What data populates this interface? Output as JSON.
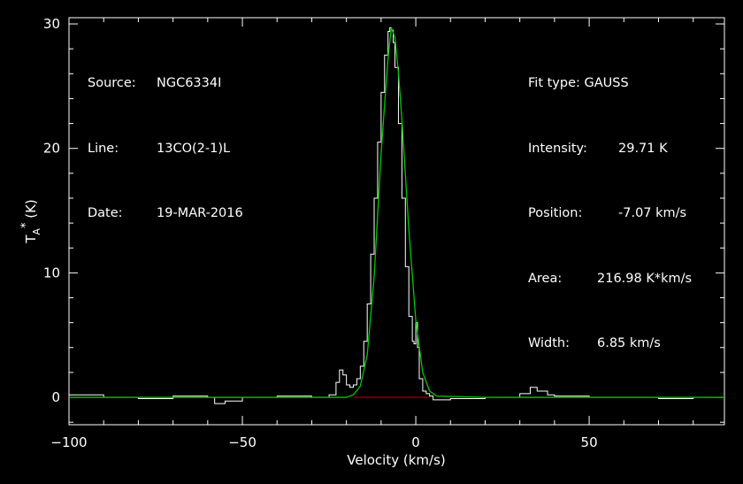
{
  "source_info": {
    "source_label": "Source:",
    "source_value": "NGC6334I",
    "line_label": "Line:",
    "line_value": "13CO(2-1)L",
    "date_label": "Date:",
    "date_value": "19-MAR-2016"
  },
  "fit_info": {
    "fit_type": "Fit type: GAUSS",
    "intensity_label": "Intensity:",
    "intensity_value": "29.71 K",
    "position_label": "Position:",
    "position_value": "-7.07 km/s",
    "area_label": "Area:",
    "area_value": "216.98 K*km/s",
    "width_label": "Width:",
    "width_value": "6.85 km/s"
  },
  "colors": {
    "background": "#000000",
    "axes": "#ffffff",
    "spectrum": "#ffffff",
    "fit": "#00c800",
    "baseline": "#c00000"
  },
  "chart_data": {
    "type": "line",
    "xlabel": "Velocity (km/s)",
    "ylabel": "T_A* (K)",
    "xlim": [
      -100,
      89
    ],
    "ylim": [
      -2.2,
      30.5
    ],
    "xticks": [
      -100,
      -50,
      0,
      50
    ],
    "yticks": [
      0,
      10,
      20,
      30
    ],
    "grid": false,
    "series": [
      {
        "name": "spectrum",
        "x": [
          -100,
          -90,
          -80,
          -70,
          -60,
          -58,
          -55,
          -50,
          -40,
          -30,
          -25,
          -23,
          -22,
          -21,
          -20,
          -19,
          -18,
          -17,
          -16,
          -15,
          -14,
          -13,
          -12,
          -11,
          -10,
          -9,
          -8,
          -7.5,
          -7,
          -6.5,
          -6,
          -5,
          -4,
          -3,
          -2,
          -1,
          -0.5,
          0,
          0.5,
          1,
          2,
          3,
          4,
          5,
          10,
          20,
          30,
          33,
          35,
          38,
          40,
          50,
          60,
          70,
          80,
          89
        ],
        "y": [
          0.2,
          0.0,
          -0.1,
          0.1,
          0.0,
          -0.5,
          -0.3,
          0.0,
          0.1,
          0.0,
          0.2,
          1.2,
          2.2,
          1.8,
          1.0,
          0.8,
          1.0,
          1.5,
          2.5,
          4.5,
          7.5,
          11.5,
          16.0,
          20.5,
          24.5,
          27.5,
          29.4,
          29.7,
          29.5,
          28.5,
          26.5,
          22.0,
          16.0,
          10.5,
          6.5,
          4.5,
          4.3,
          6.0,
          4.0,
          1.5,
          0.5,
          0.3,
          0.1,
          -0.2,
          -0.1,
          0.0,
          0.3,
          0.8,
          0.5,
          0.2,
          0.1,
          0.0,
          0.0,
          -0.1,
          0.0,
          -0.2
        ]
      },
      {
        "name": "fit",
        "x": [
          -100,
          -30,
          -20,
          -18,
          -16,
          -14,
          -12,
          -10,
          -9,
          -8,
          -7.07,
          -6,
          -5,
          -4,
          -2,
          0,
          2,
          4,
          6,
          20,
          89
        ],
        "y": [
          0,
          0,
          0.0,
          0.2,
          0.9,
          3.4,
          9.7,
          19.6,
          23.5,
          27.2,
          29.71,
          28.9,
          26.1,
          22.3,
          13.5,
          6.2,
          2.0,
          0.5,
          0.1,
          0,
          0
        ]
      },
      {
        "name": "baseline",
        "x": [
          -18,
          4
        ],
        "y": [
          0,
          0
        ]
      }
    ]
  }
}
